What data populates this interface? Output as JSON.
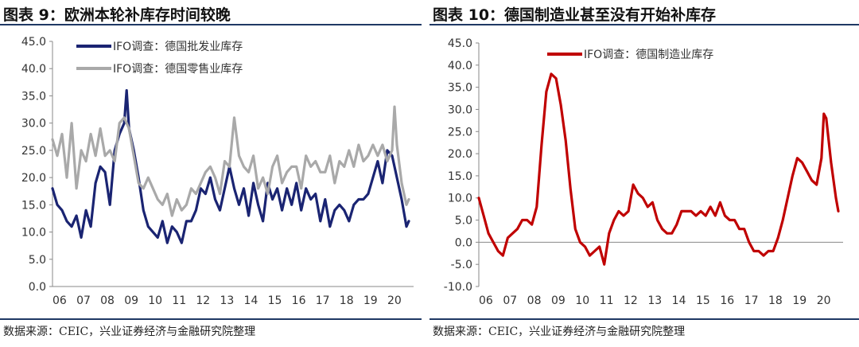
{
  "left": {
    "title": "图表 9：欧洲本轮补库存时间较晚",
    "source": "数据来源：CEIC，兴业证券经济与金融研究院整理"
  },
  "right": {
    "title": "图表 10：德国制造业甚至没有开始补库存",
    "source": "数据来源：CEIC，兴业证券经济与金融研究院整理"
  },
  "chart_data": [
    {
      "type": "line",
      "title": "图表 9：欧洲本轮补库存时间较晚",
      "ylim": [
        0,
        45
      ],
      "yticks": [
        "0.0",
        "5.0",
        "10.0",
        "15.0",
        "20.0",
        "25.0",
        "30.0",
        "35.0",
        "40.0",
        "45.0"
      ],
      "xticks": [
        "06",
        "07",
        "08",
        "09",
        "10",
        "11",
        "12",
        "13",
        "14",
        "15",
        "16",
        "17",
        "18",
        "19",
        "20"
      ],
      "legend_position": "top-left",
      "x_start": 2006.0,
      "x_end": 2020.9,
      "series": [
        {
          "name": "IFO调查：德国批发业库存",
          "color": "#1a2472",
          "x": [
            2006.0,
            2006.2,
            2006.4,
            2006.6,
            2006.8,
            2007.0,
            2007.2,
            2007.4,
            2007.6,
            2007.8,
            2008.0,
            2008.2,
            2008.4,
            2008.6,
            2008.8,
            2009.0,
            2009.1,
            2009.2,
            2009.4,
            2009.6,
            2009.8,
            2010.0,
            2010.2,
            2010.4,
            2010.6,
            2010.8,
            2011.0,
            2011.2,
            2011.4,
            2011.6,
            2011.8,
            2012.0,
            2012.2,
            2012.4,
            2012.6,
            2012.8,
            2013.0,
            2013.2,
            2013.4,
            2013.6,
            2013.8,
            2014.0,
            2014.2,
            2014.4,
            2014.6,
            2014.8,
            2015.0,
            2015.2,
            2015.4,
            2015.6,
            2015.8,
            2016.0,
            2016.2,
            2016.4,
            2016.6,
            2016.8,
            2017.0,
            2017.2,
            2017.4,
            2017.6,
            2017.8,
            2018.0,
            2018.2,
            2018.4,
            2018.6,
            2018.8,
            2019.0,
            2019.2,
            2019.4,
            2019.6,
            2019.8,
            2020.0,
            2020.2,
            2020.4,
            2020.6,
            2020.8,
            2020.9
          ],
          "values": [
            18,
            15,
            14,
            12,
            11,
            13,
            9,
            14,
            11,
            19,
            22,
            21,
            15,
            25,
            28,
            30,
            36,
            29,
            25,
            20,
            14,
            11,
            10,
            9,
            12,
            8,
            11,
            10,
            8,
            12,
            12,
            14,
            18,
            17,
            20,
            16,
            14,
            18,
            22,
            18,
            15,
            18,
            13,
            19,
            15,
            12,
            19,
            16,
            18,
            14,
            18,
            15,
            19,
            14,
            18,
            16,
            17,
            12,
            16,
            11,
            14,
            15,
            14,
            12,
            15,
            16,
            16,
            17,
            20,
            23,
            19,
            25,
            24,
            20,
            16,
            11,
            12
          ]
        },
        {
          "name": "IFO调查：德国零售业库存",
          "color": "#a9a9a9",
          "x": [
            2006.0,
            2006.2,
            2006.4,
            2006.6,
            2006.8,
            2007.0,
            2007.2,
            2007.4,
            2007.6,
            2007.8,
            2008.0,
            2008.2,
            2008.4,
            2008.6,
            2008.8,
            2009.0,
            2009.2,
            2009.4,
            2009.6,
            2009.8,
            2010.0,
            2010.2,
            2010.4,
            2010.6,
            2010.8,
            2011.0,
            2011.2,
            2011.4,
            2011.6,
            2011.8,
            2012.0,
            2012.2,
            2012.4,
            2012.6,
            2012.8,
            2013.0,
            2013.2,
            2013.4,
            2013.6,
            2013.8,
            2014.0,
            2014.2,
            2014.4,
            2014.6,
            2014.8,
            2015.0,
            2015.2,
            2015.4,
            2015.6,
            2015.8,
            2016.0,
            2016.2,
            2016.4,
            2016.6,
            2016.8,
            2017.0,
            2017.2,
            2017.4,
            2017.6,
            2017.8,
            2018.0,
            2018.2,
            2018.4,
            2018.6,
            2018.8,
            2019.0,
            2019.2,
            2019.4,
            2019.6,
            2019.8,
            2020.0,
            2020.2,
            2020.3,
            2020.4,
            2020.6,
            2020.8,
            2020.9
          ],
          "values": [
            27,
            24,
            28,
            20,
            30,
            18,
            25,
            23,
            28,
            24,
            29,
            24,
            25,
            23,
            30,
            31,
            29,
            24,
            19,
            18,
            20,
            18,
            16,
            15,
            17,
            13,
            16,
            14,
            15,
            18,
            17,
            19,
            21,
            22,
            20,
            17,
            23,
            22,
            31,
            24,
            22,
            21,
            24,
            18,
            20,
            17,
            22,
            24,
            19,
            21,
            22,
            22,
            18,
            24,
            22,
            23,
            21,
            21,
            24,
            19,
            23,
            22,
            25,
            22,
            26,
            23,
            24,
            26,
            24,
            26,
            23,
            25,
            33,
            26,
            19,
            15,
            16
          ]
        }
      ]
    },
    {
      "type": "line",
      "title": "图表 10：德国制造业甚至没有开始补库存",
      "ylim": [
        -10,
        45
      ],
      "yticks": [
        "-10.0",
        "-5.0",
        "0.0",
        "5.0",
        "10.0",
        "15.0",
        "20.0",
        "25.0",
        "30.0",
        "35.0",
        "40.0",
        "45.0"
      ],
      "xticks": [
        "06",
        "07",
        "08",
        "09",
        "10",
        "11",
        "12",
        "13",
        "14",
        "15",
        "16",
        "17",
        "18",
        "19",
        "20"
      ],
      "legend_position": "top-left",
      "x_start": 2006.0,
      "x_end": 2020.9,
      "series": [
        {
          "name": "IFO调查：德国制造业库存",
          "color": "#c00000",
          "x": [
            2006.0,
            2006.2,
            2006.4,
            2006.6,
            2006.8,
            2007.0,
            2007.2,
            2007.4,
            2007.6,
            2007.8,
            2008.0,
            2008.2,
            2008.4,
            2008.6,
            2008.8,
            2009.0,
            2009.2,
            2009.4,
            2009.6,
            2009.8,
            2010.0,
            2010.2,
            2010.4,
            2010.6,
            2010.8,
            2011.0,
            2011.2,
            2011.4,
            2011.6,
            2011.8,
            2012.0,
            2012.2,
            2012.4,
            2012.6,
            2012.8,
            2013.0,
            2013.2,
            2013.4,
            2013.6,
            2013.8,
            2014.0,
            2014.2,
            2014.4,
            2014.6,
            2014.8,
            2015.0,
            2015.2,
            2015.4,
            2015.6,
            2015.8,
            2016.0,
            2016.2,
            2016.4,
            2016.6,
            2016.8,
            2017.0,
            2017.2,
            2017.4,
            2017.6,
            2017.8,
            2018.0,
            2018.2,
            2018.4,
            2018.6,
            2018.8,
            2019.0,
            2019.2,
            2019.4,
            2019.6,
            2019.8,
            2020.0,
            2020.2,
            2020.3,
            2020.4,
            2020.6,
            2020.8,
            2020.9
          ],
          "values": [
            10,
            6,
            2,
            0,
            -2,
            -3,
            1,
            2,
            3,
            5,
            5,
            4,
            8,
            22,
            34,
            38,
            37,
            31,
            23,
            12,
            3,
            0,
            -1,
            -3,
            -2,
            -1,
            -5,
            2,
            5,
            7,
            6,
            7,
            13,
            11,
            10,
            8,
            9,
            5,
            3,
            2,
            2,
            4,
            7,
            7,
            7,
            6,
            7,
            6,
            8,
            6,
            9,
            6,
            5,
            5,
            3,
            3,
            0,
            -2,
            -2,
            -3,
            -2,
            -2,
            1,
            5,
            10,
            15,
            19,
            18,
            16,
            14,
            13,
            19,
            29,
            28,
            18,
            10,
            7
          ]
        }
      ]
    }
  ]
}
